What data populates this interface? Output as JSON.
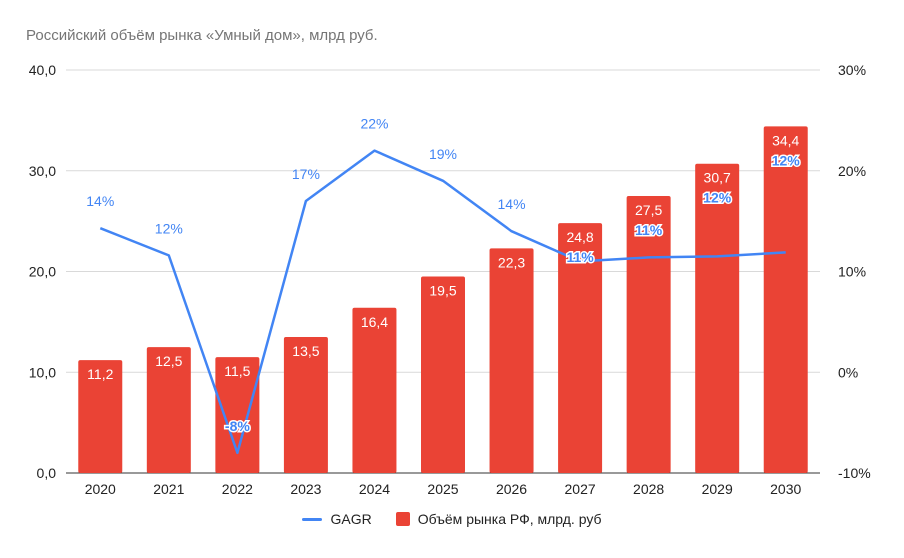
{
  "chart_data": {
    "type": "bar",
    "title": "Российский объём рынка «Умный дом», млрд руб.",
    "categories": [
      "2020",
      "2021",
      "2022",
      "2023",
      "2024",
      "2025",
      "2026",
      "2027",
      "2028",
      "2029",
      "2030"
    ],
    "series": [
      {
        "name": "Объём рынка РФ, млрд. руб",
        "type": "bar",
        "axis": "left",
        "color": "#EA4335",
        "values": [
          11.2,
          12.5,
          11.5,
          13.5,
          16.4,
          19.5,
          22.3,
          24.8,
          27.5,
          30.7,
          34.4
        ],
        "labels": [
          "11,2",
          "12,5",
          "11,5",
          "13,5",
          "16,4",
          "19,5",
          "22,3",
          "24,8",
          "27,5",
          "30,7",
          "34,4"
        ]
      },
      {
        "name": "GAGR",
        "type": "line",
        "axis": "right",
        "color": "#4285F4",
        "values": [
          14.3,
          11.6,
          -8,
          17,
          22,
          19,
          14,
          11,
          11.4,
          11.5,
          11.9
        ],
        "labels": [
          "14%",
          "12%",
          "-8%",
          "17%",
          "22%",
          "19%",
          "14%",
          "11%",
          "11%",
          "12%",
          "12%"
        ]
      }
    ],
    "left_axis": {
      "min": 0,
      "max": 40,
      "ticks": [
        "0,0",
        "10,0",
        "20,0",
        "30,0",
        "40,0"
      ]
    },
    "right_axis": {
      "min": -10,
      "max": 30,
      "ticks": [
        "-10%",
        "0%",
        "10%",
        "20%",
        "30%"
      ]
    },
    "legend_position": "bottom",
    "grid": true
  },
  "legend": {
    "line_label": "GAGR",
    "bar_label": "Объём рынка РФ, млрд. руб",
    "line_color": "#4285F4",
    "bar_color": "#EA4335"
  }
}
